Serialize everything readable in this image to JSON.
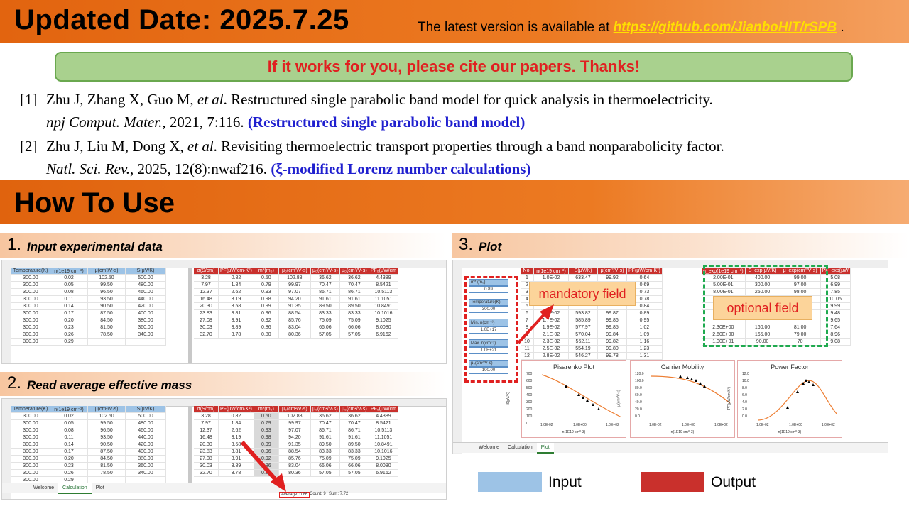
{
  "header": {
    "title": "Updated Date: 2025.7.25",
    "note_prefix": "The latest version is available at ",
    "link": "https://github.com/JianboHIT/rSPB",
    "note_suffix": " ."
  },
  "cite_banner": "If it works for you, please cite our papers. Thanks!",
  "refs": [
    {
      "num": "[1]",
      "authors": "Zhu J, Zhang X, Guo M, ",
      "etal": "et al",
      "rest1": ". Restructured single parabolic band model for quick analysis in thermoelectricity.",
      "journal": "npj Comput. Mater.",
      "rest2": ", 2021, 7:116. ",
      "note": "(Restructured single parabolic band model)"
    },
    {
      "num": "[2]",
      "authors": "Zhu J, Liu M, Dong X, ",
      "etal": "et al",
      "rest1": ". Revisiting thermoelectric transport properties through a band nonparabolicity factor.",
      "journal": "Natl. Sci. Rev.",
      "rest2": ", 2025, 12(8):nwaf216. ",
      "note": "(ξ-modified Lorenz number calculations)"
    }
  ],
  "section_title": "How To Use",
  "steps": [
    {
      "num": "1.",
      "label": "Input experimental data"
    },
    {
      "num": "2.",
      "label": "Read average effective mass"
    },
    {
      "num": "3.",
      "label": "Plot"
    }
  ],
  "sheet": {
    "input_headers": [
      "Temperature(K)",
      "n(1e19 cm⁻³)",
      "μ(cm²/V·s)",
      "S(μV/K)"
    ],
    "input_rows": [
      [
        "300.00",
        "0.02",
        "102.50",
        "500.00"
      ],
      [
        "300.00",
        "0.05",
        "99.50",
        "480.00"
      ],
      [
        "300.00",
        "0.08",
        "96.50",
        "460.00"
      ],
      [
        "300.00",
        "0.11",
        "93.50",
        "440.00"
      ],
      [
        "300.00",
        "0.14",
        "90.50",
        "420.00"
      ],
      [
        "300.00",
        "0.17",
        "87.50",
        "400.00"
      ],
      [
        "300.00",
        "0.20",
        "84.50",
        "380.00"
      ],
      [
        "300.00",
        "0.23",
        "81.50",
        "360.00"
      ],
      [
        "300.00",
        "0.26",
        "78.50",
        "340.00"
      ],
      [
        "300.00",
        "0.29",
        "",
        ""
      ]
    ],
    "output_headers": [
      "σ(S/cm)",
      "PF(μW/cm·K²)",
      "m*(m₀)",
      "μ₀(cm²/V·s)",
      "μ₀(cm²/V·s)",
      "μ₀(cm²/V·s)",
      "PF₀(μW/cm"
    ],
    "output_rows": [
      [
        "3.28",
        "0.82",
        "0.50",
        "102.88",
        "36.62",
        "36.62",
        "4.4389"
      ],
      [
        "7.97",
        "1.84",
        "0.79",
        "99.97",
        "70.47",
        "70.47",
        "8.5421"
      ],
      [
        "12.37",
        "2.62",
        "0.93",
        "97.07",
        "86.71",
        "86.71",
        "10.5113"
      ],
      [
        "16.48",
        "3.19",
        "0.98",
        "94.20",
        "91.61",
        "91.61",
        "11.1051"
      ],
      [
        "20.30",
        "3.58",
        "0.99",
        "91.35",
        "89.50",
        "89.50",
        "10.8491"
      ],
      [
        "23.83",
        "3.81",
        "0.96",
        "88.54",
        "83.33",
        "83.33",
        "10.1016"
      ],
      [
        "27.08",
        "3.91",
        "0.92",
        "85.76",
        "75.09",
        "75.09",
        "9.1025"
      ],
      [
        "30.03",
        "3.89",
        "0.86",
        "83.04",
        "66.06",
        "66.06",
        "8.0080"
      ],
      [
        "32.70",
        "3.78",
        "0.80",
        "80.36",
        "57.05",
        "57.05",
        "6.9162"
      ]
    ],
    "tabs": [
      "Welcome",
      "Calculation",
      "Plot"
    ],
    "status": {
      "average": "Average: 0.86",
      "count": "Count: 9",
      "sum": "Sum: 7.72"
    }
  },
  "plot": {
    "params": [
      {
        "label": "m* (m₀)",
        "value": "0.89"
      },
      {
        "label": "Temperature(K)",
        "value": "300.00"
      },
      {
        "label": "Min. n(cm⁻³)",
        "value": "1.0E+17"
      },
      {
        "label": "Max. n(cm⁻³)",
        "value": "1.0E+21"
      },
      {
        "label": "μ₀(cm²/V·s)",
        "value": "100.00"
      }
    ],
    "table_headers": [
      "No.",
      "n(1e19 cm⁻³)",
      "S(μV/K)",
      "μ(cm²/V·s)",
      "PF(μW/cm·K²)"
    ],
    "table_rows": [
      [
        "1",
        "1.0E-02",
        "633.47",
        "99.92",
        "0.64"
      ],
      [
        "2",
        "",
        "",
        "",
        "0.69"
      ],
      [
        "3",
        "",
        "",
        "",
        "0.73"
      ],
      [
        "4",
        "",
        "",
        "",
        "0.78"
      ],
      [
        "5",
        "",
        "",
        "",
        "0.84"
      ],
      [
        "6",
        "1.6E-02",
        "593.82",
        "99.87",
        "0.89"
      ],
      [
        "7",
        "1.7E-02",
        "585.89",
        "99.86",
        "0.95"
      ],
      [
        "8",
        "1.9E-02",
        "577.97",
        "99.85",
        "1.02"
      ],
      [
        "9",
        "2.1E-02",
        "570.04",
        "99.84",
        "1.09"
      ],
      [
        "10",
        "2.3E-02",
        "562.11",
        "99.82",
        "1.16"
      ],
      [
        "11",
        "2.5E-02",
        "554.19",
        "99.80",
        "1.23"
      ],
      [
        "12",
        "2.8E-02",
        "546.27",
        "99.78",
        "1.31"
      ]
    ],
    "exp_headers": [
      "n_exp(1e19 cm⁻³)",
      "S_exp(μV/K)",
      "μ_exp(cm²/V·s)",
      "PF_exp(μW"
    ],
    "exp_rows": [
      [
        "2.00E-01",
        "400.00",
        "99.00",
        "5.08"
      ],
      [
        "5.00E-01",
        "300.00",
        "97.00",
        "6.99"
      ],
      [
        "8.00E-01",
        "250.00",
        "98.00",
        "7.85"
      ],
      [
        "",
        "",
        "",
        "10.05"
      ],
      [
        "",
        "",
        "",
        "9.99"
      ],
      [
        "",
        "",
        "",
        "9.48"
      ],
      [
        "",
        "",
        "",
        "9.65"
      ],
      [
        "2.30E+00",
        "160.00",
        "81.00",
        "7.64"
      ],
      [
        "2.60E+00",
        "165.00",
        "79.00",
        "8.96"
      ],
      [
        "1.00E+01",
        "90.00",
        "70",
        "9.08"
      ]
    ],
    "mandatory_label": "mandatory field",
    "optional_label": "optional field",
    "charts": [
      {
        "title": "Pisarenko Plot",
        "ylabel": "S(μV/K)",
        "xlabel": "n(1E19 cm^-3)",
        "yticks": [
          "700",
          "600",
          "500",
          "400",
          "300",
          "200",
          "100",
          "0"
        ],
        "xticks": [
          "1.0E-02",
          "1.0E+00",
          "1.0E+02"
        ]
      },
      {
        "title": "Carrier Mobility",
        "ylabel": "μ(cm²/V·s)",
        "xlabel": "n(1E19 cm^-3)",
        "yticks": [
          "120.0",
          "100.0",
          "80.0",
          "60.0",
          "40.0",
          "20.0",
          "0.0"
        ],
        "xticks": [
          "1.0E-02",
          "1.0E+00",
          "1.0E+02"
        ]
      },
      {
        "title": "Power Factor",
        "ylabel": "PF(μW/cm·K²)",
        "xlabel": "n(1E19 cm^-3)",
        "yticks": [
          "12.0",
          "10.0",
          "8.0",
          "6.0",
          "4.0",
          "2.0",
          "0.0"
        ],
        "xticks": [
          "1.0E-02",
          "1.0E+00",
          "1.0E+02"
        ]
      }
    ]
  },
  "legend": {
    "input": "Input",
    "output": "Output",
    "input_color": "#9dc3e6",
    "output_color": "#c9302c"
  }
}
